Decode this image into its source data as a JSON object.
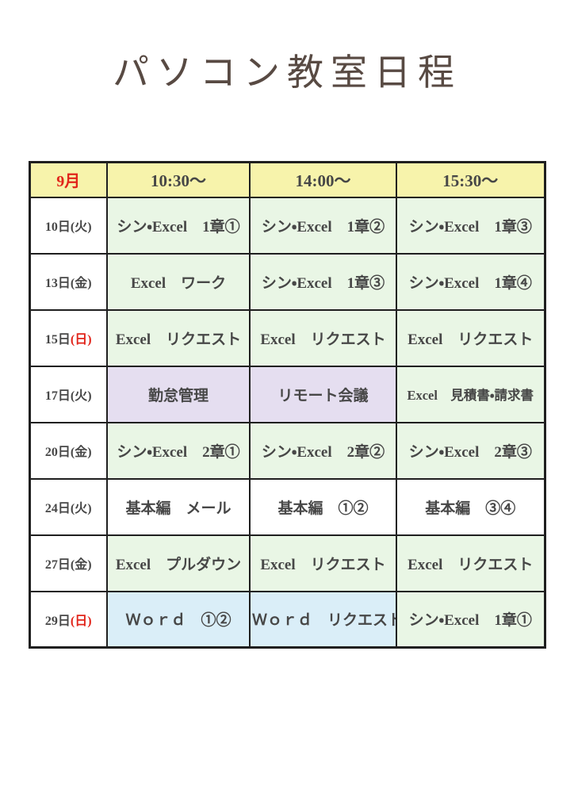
{
  "page": {
    "title": "パソコン教室日程"
  },
  "colors": {
    "header_bg": "#f7f3ab",
    "green": "#e9f6e5",
    "purple": "#e5def0",
    "blue": "#daeef8",
    "white": "#ffffff",
    "text": "#474747",
    "red": "#e1251b",
    "title": "#584a43",
    "border": "#1f1f1f"
  },
  "table": {
    "header": {
      "month": "9月",
      "month_color": "#e1251b",
      "times": [
        "10:30～",
        "14:00～",
        "15:30～"
      ]
    },
    "rows": [
      {
        "date_num": "10日",
        "date_day": "(火)",
        "day_color": "#474747",
        "cells": [
          {
            "text": "シン・Excel　1章①",
            "bg": "#e9f6e5"
          },
          {
            "text": "シン・Excel　1章②",
            "bg": "#e9f6e5"
          },
          {
            "text": "シン・Excel　1章③",
            "bg": "#e9f6e5"
          }
        ]
      },
      {
        "date_num": "13日",
        "date_day": "(金)",
        "day_color": "#474747",
        "cells": [
          {
            "text": "Excel　ワーク",
            "bg": "#e9f6e5"
          },
          {
            "text": "シン・Excel　1章③",
            "bg": "#e9f6e5"
          },
          {
            "text": "シン・Excel　1章④",
            "bg": "#e9f6e5"
          }
        ]
      },
      {
        "date_num": "15日",
        "date_day": "(日)",
        "day_color": "#e1251b",
        "cells": [
          {
            "text": "Excel　リクエスト",
            "bg": "#e9f6e5"
          },
          {
            "text": "Excel　リクエスト",
            "bg": "#e9f6e5"
          },
          {
            "text": "Excel　リクエスト",
            "bg": "#e9f6e5"
          }
        ]
      },
      {
        "date_num": "17日",
        "date_day": "(火)",
        "day_color": "#474747",
        "cells": [
          {
            "text": "勤怠管理",
            "bg": "#e5def0"
          },
          {
            "text": "リモート会議",
            "bg": "#e5def0"
          },
          {
            "text": "Excel　見積書・請求書",
            "bg": "#e9f6e5"
          }
        ]
      },
      {
        "date_num": "20日",
        "date_day": "(金)",
        "day_color": "#474747",
        "cells": [
          {
            "text": "シン・Excel　2章①",
            "bg": "#e9f6e5"
          },
          {
            "text": "シン・Excel　2章②",
            "bg": "#e9f6e5"
          },
          {
            "text": "シン・Excel　2章③",
            "bg": "#e9f6e5"
          }
        ]
      },
      {
        "date_num": "24日",
        "date_day": "(火)",
        "day_color": "#474747",
        "cells": [
          {
            "text": "基本編　メール",
            "bg": "#ffffff"
          },
          {
            "text": "基本編　①②",
            "bg": "#ffffff"
          },
          {
            "text": "基本編　③④",
            "bg": "#ffffff"
          }
        ]
      },
      {
        "date_num": "27日",
        "date_day": "(金)",
        "day_color": "#474747",
        "cells": [
          {
            "text": "Excel　プルダウン",
            "bg": "#e9f6e5"
          },
          {
            "text": "Excel　リクエスト",
            "bg": "#e9f6e5"
          },
          {
            "text": "Excel　リクエスト",
            "bg": "#e9f6e5"
          }
        ]
      },
      {
        "date_num": "29日",
        "date_day": "(日)",
        "day_color": "#e1251b",
        "cells": [
          {
            "text": "Ｗｏｒｄ　①②",
            "bg": "#daeef8"
          },
          {
            "text": "Ｗｏｒｄ　リクエスト",
            "bg": "#daeef8"
          },
          {
            "text": "シン・Excel　1章①",
            "bg": "#e9f6e5"
          }
        ]
      }
    ]
  }
}
